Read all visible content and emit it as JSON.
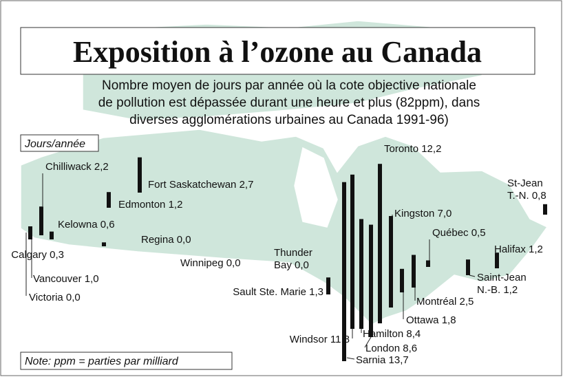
{
  "title": "Exposition à l’ozone au Canada",
  "subtitle": [
    "Nombre moyen de jours par année où la cote objective nationale",
    "de pollution est dépassée durant une heure et plus (82ppm), dans",
    "diverses agglomérations urbaines au Canada 1991-96)"
  ],
  "unit_label": "Jours/année",
  "note": "Note: ppm = parties par milliard",
  "cities": [
    {
      "name": [
        "Victoria"
      ],
      "value": 0,
      "value_label": "0,0"
    },
    {
      "name": [
        "Vancouver"
      ],
      "value": 1,
      "value_label": "1,0"
    },
    {
      "name": [
        "Chilliwack"
      ],
      "value": 2.2,
      "value_label": "2,2"
    },
    {
      "name": [
        "Kelowna"
      ],
      "value": 0.6,
      "value_label": "0,6"
    },
    {
      "name": [
        "Calgary"
      ],
      "value": 0.3,
      "value_label": "0,3"
    },
    {
      "name": [
        "Edmonton"
      ],
      "value": 1.2,
      "value_label": "1,2"
    },
    {
      "name": [
        "Fort Saskatchewan"
      ],
      "value": 2.7,
      "value_label": "2,7"
    },
    {
      "name": [
        "Regina"
      ],
      "value": 0,
      "value_label": "0,0"
    },
    {
      "name": [
        "Winnipeg"
      ],
      "value": 0,
      "value_label": "0,0"
    },
    {
      "name": [
        "Thunder",
        "Bay"
      ],
      "value": 0,
      "value_label": "0,0"
    },
    {
      "name": [
        "Sault Ste. Marie"
      ],
      "value": 1.3,
      "value_label": "1,3"
    },
    {
      "name": [
        "Windsor"
      ],
      "value": 11.8,
      "value_label": "11,8"
    },
    {
      "name": [
        "Sarnia"
      ],
      "value": 13.7,
      "value_label": "13,7"
    },
    {
      "name": [
        "London"
      ],
      "value": 8.6,
      "value_label": "8,6"
    },
    {
      "name": [
        "Hamilton"
      ],
      "value": 8.4,
      "value_label": "8,4"
    },
    {
      "name": [
        "Toronto"
      ],
      "value": 12.2,
      "value_label": "12,2"
    },
    {
      "name": [
        "Kingston"
      ],
      "value": 7,
      "value_label": "7,0"
    },
    {
      "name": [
        "Ottawa"
      ],
      "value": 1.8,
      "value_label": "1,8"
    },
    {
      "name": [
        "Montréal"
      ],
      "value": 2.5,
      "value_label": "2,5"
    },
    {
      "name": [
        "Québec"
      ],
      "value": 0.5,
      "value_label": "0,5"
    },
    {
      "name": [
        "Halifax"
      ],
      "value": 1.2,
      "value_label": "1,2"
    },
    {
      "name": [
        "Saint-Jean",
        "N.-B."
      ],
      "value": 1.2,
      "value_label": "1,2"
    },
    {
      "name": [
        "St-Jean",
        "T.-N."
      ],
      "value": 0.8,
      "value_label": "0,8"
    }
  ]
}
